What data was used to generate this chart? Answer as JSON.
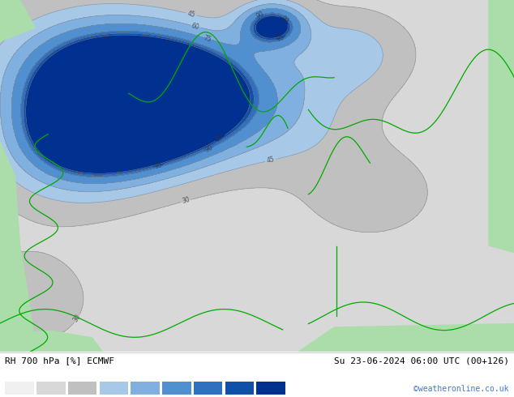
{
  "title_left": "RH 700 hPa [%] ECMWF",
  "title_right": "Su 23-06-2024 06:00 UTC (00+126)",
  "credit": "©weatheronline.co.uk",
  "levels": [
    15,
    30,
    45,
    60,
    75,
    90,
    95,
    99,
    100
  ],
  "fill_levels": [
    0,
    15,
    30,
    45,
    60,
    75,
    90,
    95,
    99,
    101
  ],
  "fill_colors": [
    "#f0f0f0",
    "#d8d8d8",
    "#c0c0c0",
    "#a8c8e8",
    "#80b0e0",
    "#5090d0",
    "#3070c0",
    "#1050a8",
    "#003090"
  ],
  "contour_levels": [
    15,
    30,
    45,
    60,
    75,
    90,
    95,
    99
  ],
  "contour_color": "#888888",
  "label_colors": [
    "#aaaaaa",
    "#aaaaaa",
    "#aaaaaa",
    "#5090d0",
    "#4080c8",
    "#3070c0",
    "#2060b0",
    "#1050a0",
    "#003090"
  ],
  "land_color": "#aaddaa",
  "coast_color": "#00aa00",
  "bg_map_color": "#c8c8c8",
  "bottom_bg": "#ffffff",
  "fig_width": 6.34,
  "fig_height": 4.9,
  "dpi": 100
}
